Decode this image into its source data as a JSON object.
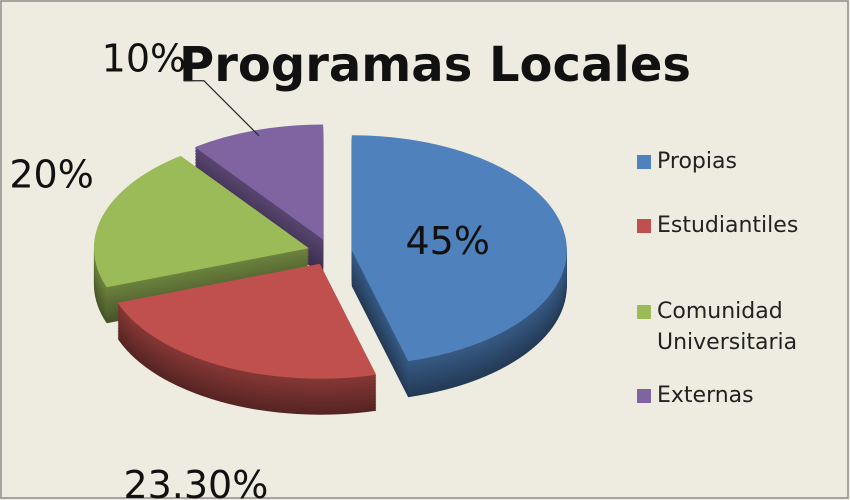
{
  "chart_data": {
    "type": "pie",
    "title": "Programas  Locales",
    "categories": [
      "Propias",
      "Estudiantiles",
      "Comunidad Universitaria",
      "Externas"
    ],
    "values": [
      45,
      23.3,
      20,
      10
    ],
    "value_labels": [
      "45%",
      "23.30%",
      "20%",
      "10%"
    ],
    "colors": [
      "#4f81bd",
      "#c0504d",
      "#9bbb59",
      "#8064a2"
    ],
    "legend": "right"
  }
}
